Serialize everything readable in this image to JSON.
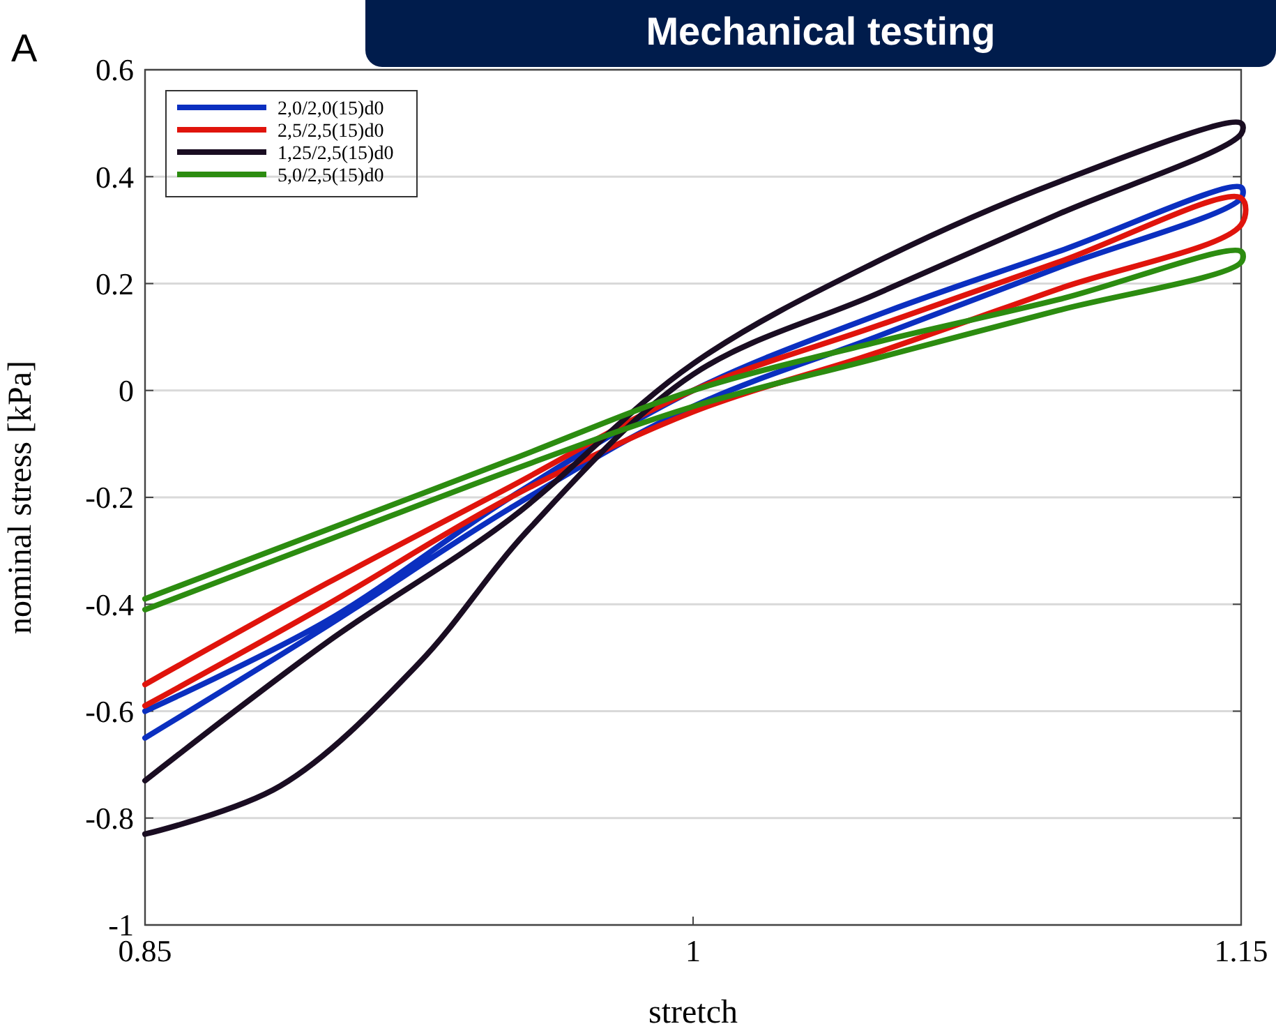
{
  "chart_data": {
    "type": "line",
    "title": "Mechanical testing",
    "annotations": [
      "A"
    ],
    "xlabel": "stretch",
    "ylabel": "nominal stress [kPa]",
    "xlim": [
      0.85,
      1.15
    ],
    "xticks": [
      0.85,
      1,
      1.15
    ],
    "ylim": [
      -1,
      0.6
    ],
    "yticks": [
      -1,
      -0.8,
      -0.6,
      -0.4,
      -0.2,
      0,
      0.2,
      0.4,
      0.6
    ],
    "grid": "y",
    "legend": "top left",
    "marker": "none",
    "line_style": "solid",
    "series": [
      {
        "name": "2,0/2,0(15)d0",
        "color": "#0b2fc0",
        "x": [
          0.85,
          0.9,
          0.95,
          1,
          1.05,
          1.1,
          1.15,
          1.15,
          1.1,
          1.05,
          1,
          0.95,
          0.9,
          0.85
        ],
        "values": [
          -0.6,
          -0.43,
          -0.2,
          0,
          0.14,
          0.26,
          0.38,
          0.36,
          0.23,
          0.1,
          -0.03,
          -0.22,
          -0.44,
          -0.65
        ]
      },
      {
        "name": "2,5/2,5(15)d0",
        "color": "#e0140c",
        "x": [
          0.85,
          0.9,
          0.95,
          1,
          1.05,
          1.1,
          1.15,
          1.15,
          1.1,
          1.05,
          1,
          0.95,
          0.9,
          0.85
        ],
        "values": [
          -0.55,
          -0.36,
          -0.18,
          0,
          0.12,
          0.24,
          0.36,
          0.31,
          0.19,
          0.07,
          -0.04,
          -0.2,
          -0.4,
          -0.59
        ]
      },
      {
        "name": "1,25/2,5(15)d0",
        "color": "#1a0d22",
        "x": [
          0.85,
          0.9,
          0.95,
          1,
          1.05,
          1.1,
          1.15,
          1.15,
          1.1,
          1.05,
          1,
          0.955,
          0.925,
          0.887,
          0.85
        ],
        "values": [
          -0.73,
          -0.47,
          -0.24,
          0.05,
          0.24,
          0.39,
          0.5,
          0.48,
          0.33,
          0.18,
          0.03,
          -0.26,
          -0.51,
          -0.74,
          -0.83
        ]
      },
      {
        "name": "5,0/2,5(15)d0",
        "color": "#2c8c10",
        "x": [
          0.85,
          0.9,
          0.95,
          1,
          1.05,
          1.1,
          1.15,
          1.15,
          1.1,
          1.05,
          1,
          0.95,
          0.9,
          0.85
        ],
        "values": [
          -0.39,
          -0.26,
          -0.13,
          0,
          0.09,
          0.17,
          0.26,
          0.24,
          0.15,
          0.06,
          -0.03,
          -0.15,
          -0.28,
          -0.41
        ]
      }
    ]
  }
}
